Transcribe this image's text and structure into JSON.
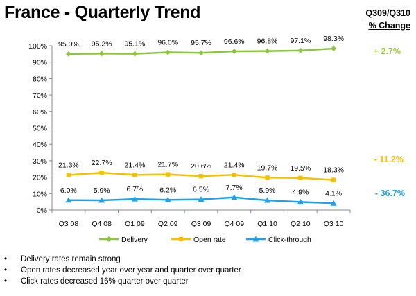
{
  "title": "France - Quarterly Trend",
  "change_header": {
    "line1": "Q309/Q310",
    "line2": "% Change"
  },
  "changes": [
    {
      "series": "Delivery",
      "text": "+ 2.7%",
      "color": "#9ACD32"
    },
    {
      "series": "Open rate",
      "text": "- 11.2%",
      "color": "#F5C000"
    },
    {
      "series": "Click-through",
      "text": "- 36.7%",
      "color": "#1FA0E8"
    }
  ],
  "bullets": [
    "Delivery rates remain strong",
    "Open rates decreased year over year and quarter over quarter",
    "Click rates decreased 16% quarter over quarter"
  ],
  "chart_data": {
    "type": "line",
    "x": [
      "Q3 08",
      "Q4 08",
      "Q1 09",
      "Q2 09",
      "Q3 09",
      "Q4 09",
      "Q1 10",
      "Q2 10",
      "Q3 10"
    ],
    "ylim": [
      0,
      100
    ],
    "yticks": [
      "0%",
      "10%",
      "20%",
      "30%",
      "40%",
      "50%",
      "60%",
      "70%",
      "80%",
      "90%",
      "100%"
    ],
    "grid": false,
    "legend_position": "bottom",
    "series": [
      {
        "name": "Delivery",
        "color": "#8CC63F",
        "marker": "diamond",
        "values": [
          95.0,
          95.2,
          95.1,
          96.0,
          95.7,
          96.6,
          96.8,
          97.1,
          98.3
        ],
        "labels": [
          "95.0%",
          "95.2%",
          "95.1%",
          "96.0%",
          "95.7%",
          "96.6%",
          "96.8%",
          "97.1%",
          "98.3%"
        ]
      },
      {
        "name": "Open rate",
        "color": "#F5C000",
        "marker": "square",
        "values": [
          21.3,
          22.7,
          21.4,
          21.7,
          20.6,
          21.4,
          19.7,
          19.5,
          18.3
        ],
        "labels": [
          "21.3%",
          "22.7%",
          "21.4%",
          "21.7%",
          "20.6%",
          "21.4%",
          "19.7%",
          "19.5%",
          "18.3%"
        ]
      },
      {
        "name": "Click-through",
        "color": "#1FA0E8",
        "marker": "triangle",
        "values": [
          6.0,
          5.9,
          6.7,
          6.2,
          6.5,
          7.7,
          5.9,
          4.9,
          4.1
        ],
        "labels": [
          "6.0%",
          "5.9%",
          "6.7%",
          "6.2%",
          "6.5%",
          "7.7%",
          "5.9%",
          "4.9%",
          "4.1%"
        ]
      }
    ]
  }
}
